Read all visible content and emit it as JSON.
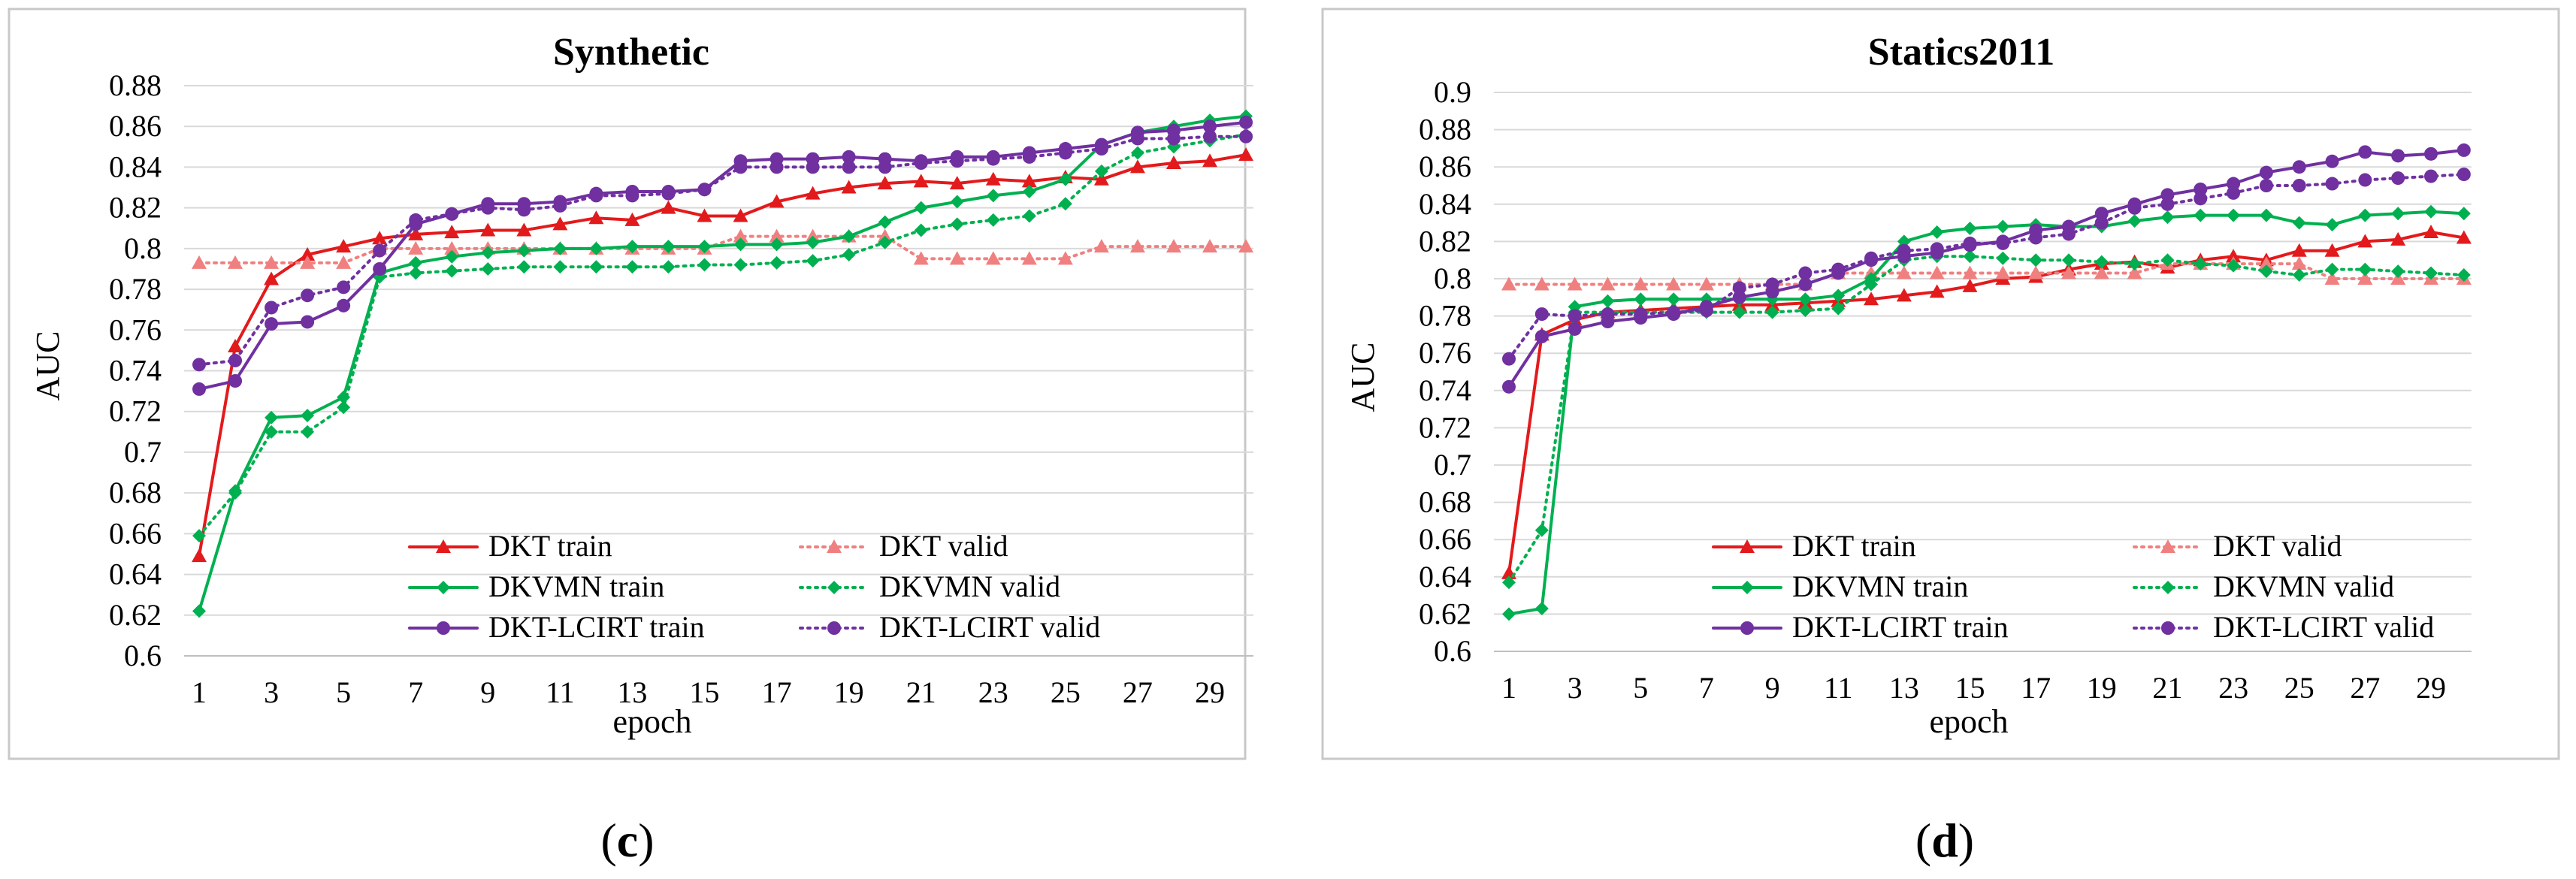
{
  "figure": {
    "captions": [
      {
        "open": "(",
        "letter": "c",
        "close": ")"
      },
      {
        "open": "(",
        "letter": "d",
        "close": ")"
      }
    ]
  },
  "chart_data": [
    {
      "type": "line",
      "title": "Synthetic",
      "xlabel": "epoch",
      "ylabel": "AUC",
      "x": [
        1,
        2,
        3,
        4,
        5,
        6,
        7,
        8,
        9,
        10,
        11,
        12,
        13,
        14,
        15,
        16,
        17,
        18,
        19,
        20,
        21,
        22,
        23,
        24,
        25,
        26,
        27,
        28,
        29,
        30
      ],
      "x_ticks": [
        1,
        3,
        5,
        7,
        9,
        11,
        13,
        15,
        17,
        19,
        21,
        23,
        25,
        27,
        29
      ],
      "y_ticks": [
        "0.6",
        "0.62",
        "0.64",
        "0.66",
        "0.68",
        "0.7",
        "0.72",
        "0.74",
        "0.76",
        "0.78",
        "0.8",
        "0.82",
        "0.84",
        "0.86",
        "0.88"
      ],
      "ylim": [
        0.6,
        0.88
      ],
      "xlim": [
        1,
        30
      ],
      "grid": "horizontal",
      "legend_position": "bottom-right",
      "series": [
        {
          "name": "DKT train",
          "color": "#e31a1c",
          "style": "solid",
          "marker": "triangle",
          "values": [
            0.649,
            0.752,
            0.785,
            0.797,
            0.801,
            0.805,
            0.807,
            0.808,
            0.809,
            0.809,
            0.812,
            0.815,
            0.814,
            0.82,
            0.816,
            0.816,
            0.823,
            0.827,
            0.83,
            0.832,
            0.833,
            0.832,
            0.834,
            0.833,
            0.835,
            0.834,
            0.84,
            0.842,
            0.843,
            0.846
          ]
        },
        {
          "name": "DKT valid",
          "color": "#f08080",
          "style": "dotted",
          "marker": "triangle",
          "values": [
            0.793,
            0.793,
            0.793,
            0.793,
            0.793,
            0.8,
            0.8,
            0.8,
            0.8,
            0.8,
            0.8,
            0.8,
            0.8,
            0.8,
            0.8,
            0.806,
            0.806,
            0.806,
            0.806,
            0.806,
            0.795,
            0.795,
            0.795,
            0.795,
            0.795,
            0.801,
            0.801,
            0.801,
            0.801,
            0.801
          ]
        },
        {
          "name": "DKVMN train",
          "color": "#00b050",
          "style": "solid",
          "marker": "diamond",
          "values": [
            0.622,
            0.681,
            0.717,
            0.718,
            0.727,
            0.788,
            0.793,
            0.796,
            0.798,
            0.799,
            0.8,
            0.8,
            0.801,
            0.801,
            0.801,
            0.802,
            0.802,
            0.803,
            0.806,
            0.813,
            0.82,
            0.823,
            0.826,
            0.828,
            0.834,
            0.851,
            0.857,
            0.86,
            0.863,
            0.865
          ]
        },
        {
          "name": "DKVMN valid",
          "color": "#00b050",
          "style": "dotted",
          "marker": "diamond",
          "values": [
            0.659,
            0.68,
            0.71,
            0.71,
            0.722,
            0.786,
            0.788,
            0.789,
            0.79,
            0.791,
            0.791,
            0.791,
            0.791,
            0.791,
            0.792,
            0.792,
            0.793,
            0.794,
            0.797,
            0.803,
            0.809,
            0.812,
            0.814,
            0.816,
            0.822,
            0.838,
            0.847,
            0.85,
            0.853,
            0.856
          ]
        },
        {
          "name": "DKT-LCIRT train",
          "color": "#7030a0",
          "style": "solid",
          "marker": "circle",
          "values": [
            0.731,
            0.735,
            0.763,
            0.764,
            0.772,
            0.79,
            0.812,
            0.817,
            0.822,
            0.822,
            0.823,
            0.827,
            0.828,
            0.828,
            0.829,
            0.843,
            0.844,
            0.844,
            0.845,
            0.844,
            0.843,
            0.845,
            0.845,
            0.847,
            0.849,
            0.851,
            0.857,
            0.858,
            0.86,
            0.862
          ]
        },
        {
          "name": "DKT-LCIRT valid",
          "color": "#7030a0",
          "style": "dotted",
          "marker": "circle",
          "values": [
            0.743,
            0.745,
            0.771,
            0.777,
            0.781,
            0.799,
            0.814,
            0.817,
            0.82,
            0.819,
            0.821,
            0.826,
            0.826,
            0.827,
            0.829,
            0.84,
            0.84,
            0.84,
            0.84,
            0.84,
            0.842,
            0.843,
            0.844,
            0.845,
            0.847,
            0.849,
            0.854,
            0.854,
            0.855,
            0.855
          ]
        }
      ]
    },
    {
      "type": "line",
      "title": "Statics2011",
      "xlabel": "epoch",
      "ylabel": "AUC",
      "x": [
        1,
        2,
        3,
        4,
        5,
        6,
        7,
        8,
        9,
        10,
        11,
        12,
        13,
        14,
        15,
        16,
        17,
        18,
        19,
        20,
        21,
        22,
        23,
        24,
        25,
        26,
        27,
        28,
        29,
        30
      ],
      "x_ticks": [
        1,
        3,
        5,
        7,
        9,
        11,
        13,
        15,
        17,
        19,
        21,
        23,
        25,
        27,
        29
      ],
      "y_ticks": [
        "0.6",
        "0.62",
        "0.64",
        "0.66",
        "0.68",
        "0.7",
        "0.72",
        "0.74",
        "0.76",
        "0.78",
        "0.8",
        "0.82",
        "0.84",
        "0.86",
        "0.88",
        "0.9"
      ],
      "ylim": [
        0.6,
        0.9
      ],
      "xlim": [
        1,
        30
      ],
      "grid": "horizontal",
      "legend_position": "bottom-right",
      "series": [
        {
          "name": "DKT train",
          "color": "#e31a1c",
          "style": "solid",
          "marker": "triangle",
          "values": [
            0.642,
            0.77,
            0.778,
            0.782,
            0.783,
            0.784,
            0.785,
            0.786,
            0.786,
            0.787,
            0.788,
            0.789,
            0.791,
            0.793,
            0.796,
            0.8,
            0.801,
            0.805,
            0.808,
            0.809,
            0.806,
            0.81,
            0.812,
            0.81,
            0.815,
            0.815,
            0.82,
            0.821,
            0.825,
            0.822
          ]
        },
        {
          "name": "DKT valid",
          "color": "#f08080",
          "style": "dotted",
          "marker": "triangle",
          "values": [
            0.797,
            0.797,
            0.797,
            0.797,
            0.797,
            0.797,
            0.797,
            0.797,
            0.797,
            0.797,
            0.803,
            0.803,
            0.803,
            0.803,
            0.803,
            0.803,
            0.803,
            0.803,
            0.803,
            0.803,
            0.808,
            0.808,
            0.808,
            0.808,
            0.808,
            0.8,
            0.8,
            0.8,
            0.8,
            0.8
          ]
        },
        {
          "name": "DKVMN train",
          "color": "#00b050",
          "style": "solid",
          "marker": "diamond",
          "values": [
            0.62,
            0.623,
            0.785,
            0.788,
            0.789,
            0.789,
            0.789,
            0.789,
            0.789,
            0.789,
            0.791,
            0.8,
            0.82,
            0.825,
            0.827,
            0.828,
            0.829,
            0.828,
            0.828,
            0.831,
            0.833,
            0.834,
            0.834,
            0.834,
            0.83,
            0.829,
            0.834,
            0.835,
            0.836,
            0.835
          ]
        },
        {
          "name": "DKVMN valid",
          "color": "#00b050",
          "style": "dotted",
          "marker": "diamond",
          "values": [
            0.637,
            0.665,
            0.782,
            0.782,
            0.782,
            0.782,
            0.782,
            0.782,
            0.782,
            0.783,
            0.784,
            0.797,
            0.81,
            0.812,
            0.812,
            0.811,
            0.81,
            0.81,
            0.809,
            0.808,
            0.81,
            0.808,
            0.807,
            0.804,
            0.802,
            0.805,
            0.805,
            0.804,
            0.803,
            0.802
          ]
        },
        {
          "name": "DKT-LCIRT train",
          "color": "#7030a0",
          "style": "solid",
          "marker": "circle",
          "values": [
            0.742,
            0.769,
            0.773,
            0.777,
            0.779,
            0.781,
            0.785,
            0.79,
            0.793,
            0.797,
            0.803,
            0.81,
            0.812,
            0.814,
            0.818,
            0.82,
            0.826,
            0.828,
            0.835,
            0.84,
            0.845,
            0.848,
            0.851,
            0.857,
            0.86,
            0.863,
            0.868,
            0.866,
            0.867,
            0.869
          ]
        },
        {
          "name": "DKT-LCIRT valid",
          "color": "#7030a0",
          "style": "dotted",
          "marker": "circle",
          "values": [
            0.757,
            0.781,
            0.78,
            0.781,
            0.781,
            0.782,
            0.783,
            0.795,
            0.797,
            0.803,
            0.805,
            0.811,
            0.815,
            0.816,
            0.819,
            0.819,
            0.822,
            0.824,
            0.83,
            0.838,
            0.84,
            0.843,
            0.846,
            0.85,
            0.85,
            0.851,
            0.853,
            0.854,
            0.855,
            0.856
          ]
        }
      ]
    }
  ]
}
